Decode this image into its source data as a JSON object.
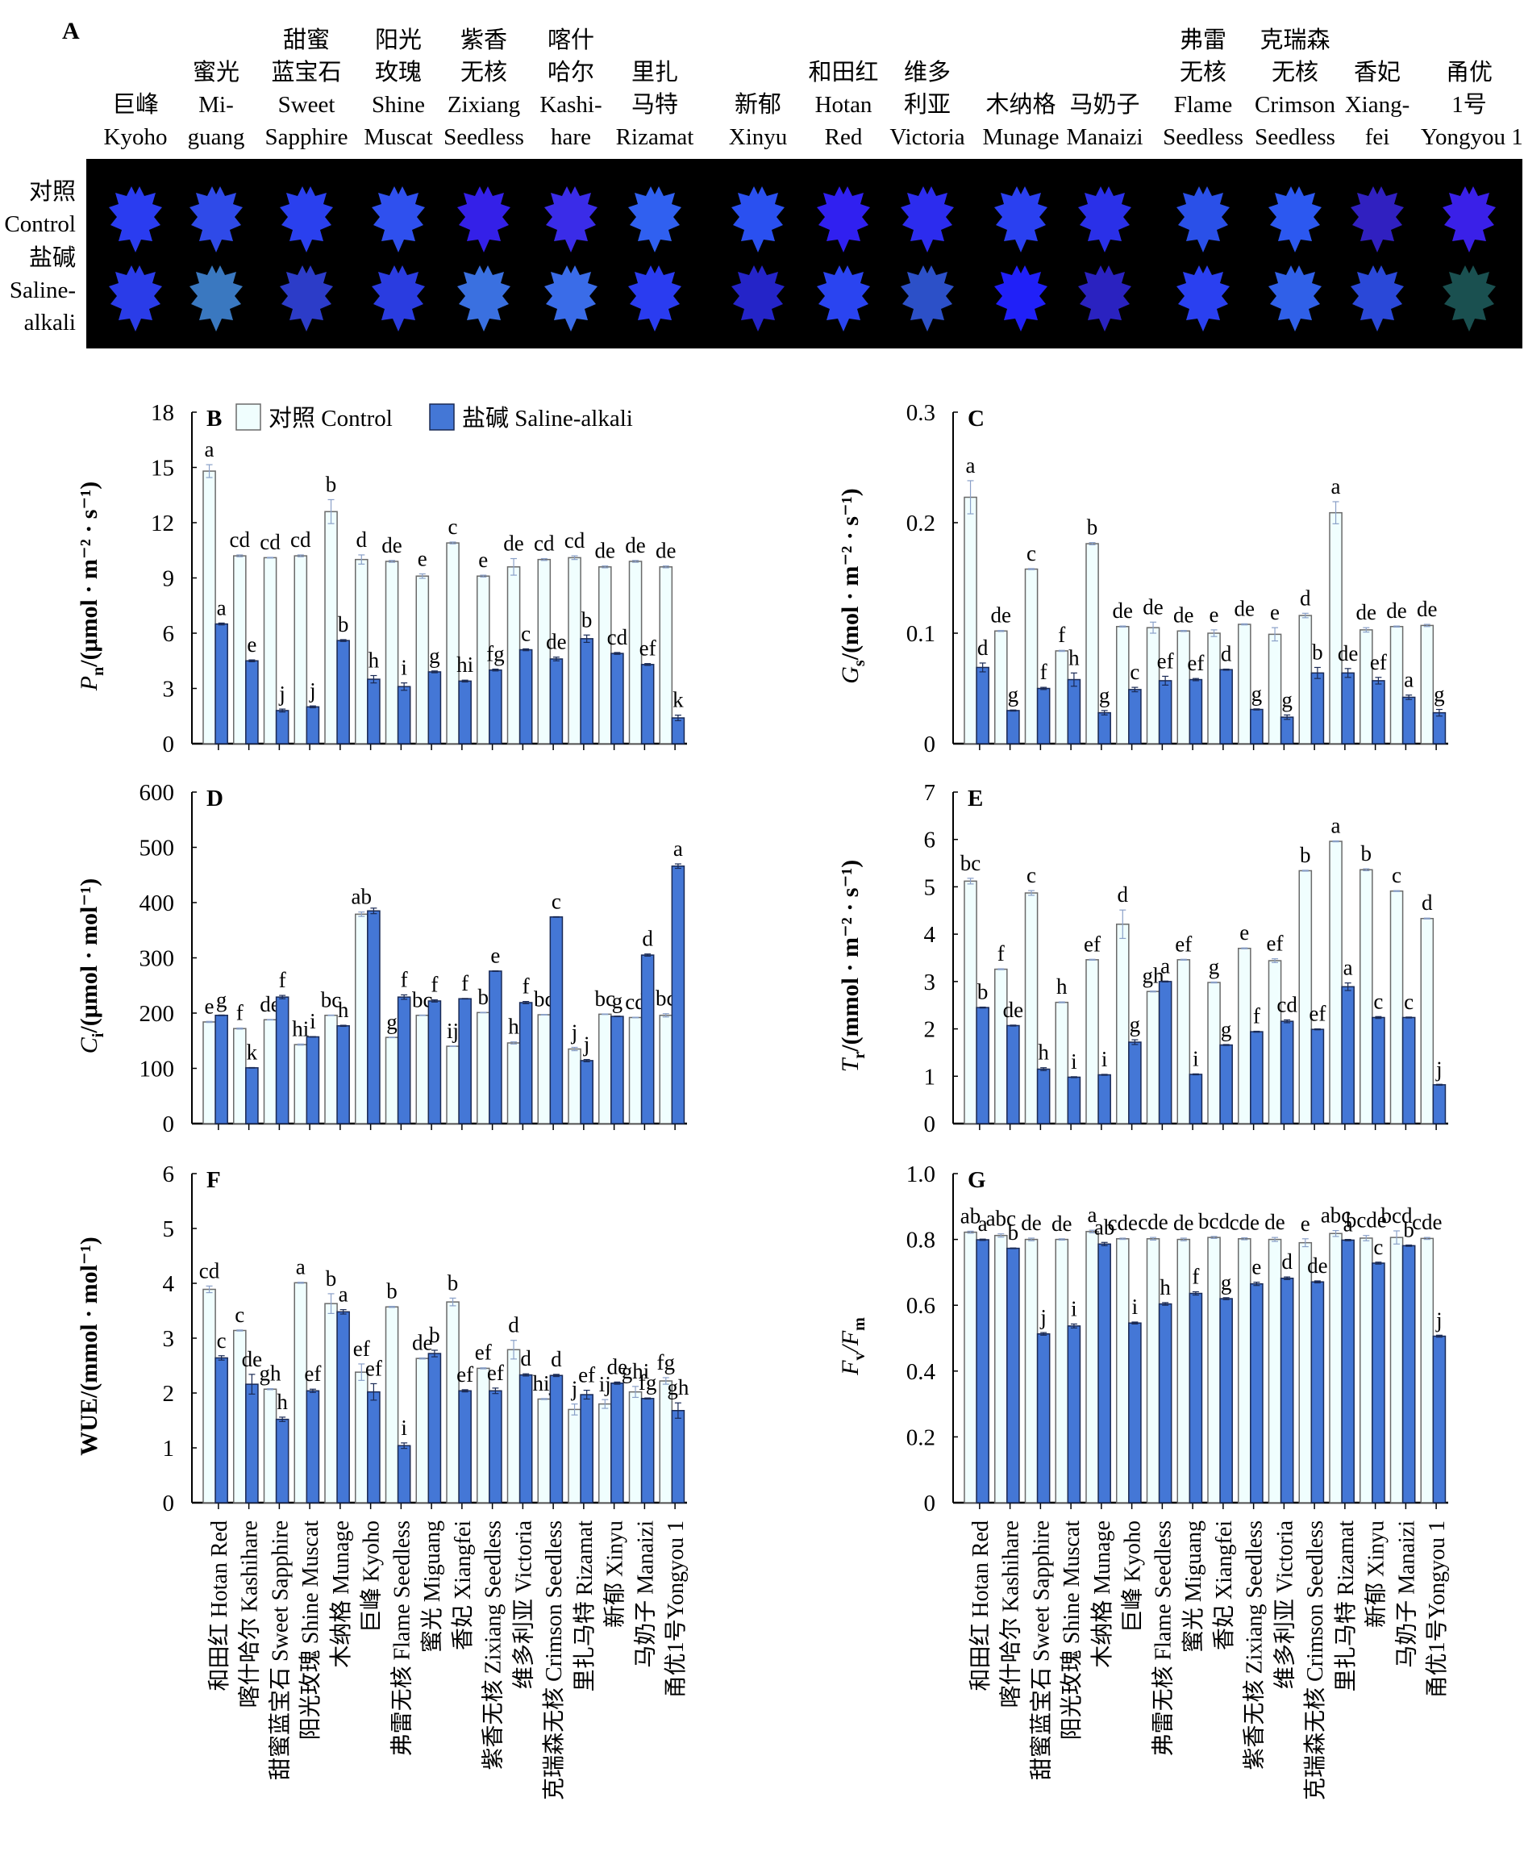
{
  "panel_a": {
    "letter": "A",
    "row_labels": [
      {
        "cn": "对照",
        "en": "Control"
      },
      {
        "cn": "盐碱",
        "en1": "Saline-",
        "en2": "alkali"
      }
    ],
    "varieties": [
      {
        "lines": [
          "",
          "",
          "巨峰",
          "Kyoho"
        ],
        "control_color": "#2a3cf0",
        "stress_color": "#2a3ce8"
      },
      {
        "lines": [
          "",
          "蜜光",
          "Mi-",
          "guang"
        ],
        "control_color": "#2f4ae8",
        "stress_color": "#3a78c0"
      },
      {
        "lines": [
          "甜蜜",
          "蓝宝石",
          "Sweet",
          "Sapphire"
        ],
        "control_color": "#2a40ee",
        "stress_color": "#2c3cc8"
      },
      {
        "lines": [
          "阳光",
          "玫瑰",
          "Shine",
          "Muscat"
        ],
        "control_color": "#2f50ee",
        "stress_color": "#2a3ce0"
      },
      {
        "lines": [
          "紫香",
          "无核",
          "Zixiang",
          "Seedless"
        ],
        "control_color": "#3420e8",
        "stress_color": "#3a70e0"
      },
      {
        "lines": [
          "喀什",
          "哈尔",
          "Kashi-",
          "hare"
        ],
        "control_color": "#3a2ce8",
        "stress_color": "#3a6ce8"
      },
      {
        "lines": [
          "",
          "里扎",
          "马特",
          "Rizamat"
        ],
        "control_color": "#3060f0",
        "stress_color": "#2a3cf0"
      },
      {
        "lines": [
          "",
          "",
          "新郁",
          "Xinyu"
        ],
        "control_color": "#2a50f0",
        "stress_color": "#2424c8"
      },
      {
        "lines": [
          "",
          "和田红",
          "Hotan",
          "Red"
        ],
        "control_color": "#3020f0",
        "stress_color": "#2a44f0"
      },
      {
        "lines": [
          "",
          "维多",
          "利亚",
          "Victoria"
        ],
        "control_color": "#2c2cee",
        "stress_color": "#2c50c8"
      },
      {
        "lines": [
          "",
          "",
          "木纳格",
          "Munage"
        ],
        "control_color": "#2a40f0",
        "stress_color": "#2020f8"
      },
      {
        "lines": [
          "",
          "",
          "马奶子",
          "Manaizi"
        ],
        "control_color": "#2a30e8",
        "stress_color": "#2a22c0"
      },
      {
        "lines": [
          "弗雷",
          "无核",
          "Flame",
          "Seedless"
        ],
        "control_color": "#2a50e8",
        "stress_color": "#2a40f0"
      },
      {
        "lines": [
          "克瑞森",
          "无核",
          "Crimson",
          "Seedless"
        ],
        "control_color": "#2c58f0",
        "stress_color": "#3060e8"
      },
      {
        "lines": [
          "",
          "香妃",
          "Xiang-",
          "fei"
        ],
        "control_color": "#3020c0",
        "stress_color": "#2a48d8"
      },
      {
        "lines": [
          "",
          "甬优",
          "1号",
          "Yongyou 1"
        ],
        "control_color": "#3a20e8",
        "stress_color": "#1a5050"
      }
    ]
  },
  "legend": {
    "control": "对照 Control",
    "stress": "盐碱 Saline-alkali",
    "control_color": "#f0fefe",
    "stress_color": "#4477d6"
  },
  "x_categories": [
    "和田红 Hotan Red",
    "喀什哈尔 Kashihare",
    "甜蜜蓝宝石 Sweet Sapphire",
    "阳光玫瑰 Shine Muscat",
    "木纳格 Munage",
    "巨峰 Kyoho",
    "弗雷无核 Flame Seedless",
    "蜜光 Miguang",
    "香妃 Xiangfei",
    "紫香无核 Zixiang Seedless",
    "维多利亚 Victoria",
    "克瑞森无核 Crimson Seedless",
    "里扎马特 Rizamat",
    "新郁 Xinyu",
    "马奶子 Manaizi",
    "甬优1号Yongyou 1"
  ],
  "chart_data": [
    {
      "id": "B",
      "type": "bar",
      "letter": "B",
      "ylabel_main": "P",
      "ylabel_sub": "n",
      "ylabel_rest": "/(μmol · m⁻² · s⁻¹)",
      "ylim": [
        0,
        18
      ],
      "yticks": [
        0,
        3,
        6,
        9,
        12,
        15,
        18
      ],
      "show_legend": true,
      "series": [
        {
          "name": "对照 Control",
          "values": [
            14.8,
            10.2,
            10.1,
            10.2,
            12.6,
            10.0,
            9.9,
            9.1,
            10.9,
            9.1,
            9.6,
            10.0,
            10.1,
            9.6,
            9.9,
            9.6
          ],
          "errors": [
            0.35,
            0.05,
            0.02,
            0.05,
            0.65,
            0.25,
            0.05,
            0.12,
            0.05,
            0.05,
            0.45,
            0.05,
            0.1,
            0.05,
            0.05,
            0.05
          ],
          "letters": [
            "a",
            "cd",
            "cd",
            "cd",
            "b",
            "d",
            "de",
            "e",
            "c",
            "e",
            "de",
            "cd",
            "cd",
            "de",
            "de",
            "de"
          ]
        },
        {
          "name": "盐碱 Saline-alkali",
          "values": [
            6.5,
            4.5,
            1.8,
            2.0,
            5.6,
            3.5,
            3.1,
            3.9,
            3.4,
            4.0,
            5.1,
            4.6,
            5.7,
            4.9,
            4.3,
            1.4
          ],
          "errors": [
            0.05,
            0.05,
            0.08,
            0.05,
            0.05,
            0.2,
            0.2,
            0.05,
            0.05,
            0.05,
            0.05,
            0.1,
            0.2,
            0.05,
            0.05,
            0.15
          ],
          "letters": [
            "a",
            "e",
            "j",
            "j",
            "b",
            "h",
            "i",
            "g",
            "hi",
            "fg",
            "c",
            "de",
            "b",
            "cd",
            "ef",
            "k"
          ]
        }
      ]
    },
    {
      "id": "C",
      "type": "bar",
      "letter": "C",
      "ylabel_main": "G",
      "ylabel_sub": "s",
      "ylabel_rest": "/(mol · m⁻² · s⁻¹)",
      "ylim": [
        0,
        0.3
      ],
      "yticks": [
        0,
        0.1,
        0.2,
        0.3
      ],
      "show_legend": false,
      "series": [
        {
          "name": "对照 Control",
          "values": [
            0.223,
            0.102,
            0.158,
            0.084,
            0.181,
            0.106,
            0.105,
            0.102,
            0.1,
            0.108,
            0.099,
            0.116,
            0.209,
            0.103,
            0.106,
            0.107
          ],
          "errors": [
            0.015,
            0.0005,
            0.0005,
            0.0005,
            0.001,
            0.0005,
            0.005,
            0.0005,
            0.003,
            0.0005,
            0.006,
            0.002,
            0.01,
            0.002,
            0.0005,
            0.001
          ],
          "letters": [
            "a",
            "de",
            "c",
            "f",
            "b",
            "de",
            "de",
            "de",
            "e",
            "de",
            "e",
            "d",
            "a",
            "de",
            "de",
            "de"
          ]
        },
        {
          "name": "盐碱 Saline-alkali",
          "values": [
            0.069,
            0.03,
            0.05,
            0.058,
            0.028,
            0.049,
            0.057,
            0.058,
            0.067,
            0.031,
            0.024,
            0.064,
            0.064,
            0.057,
            0.042,
            0.028
          ],
          "errors": [
            0.004,
            0.0005,
            0.001,
            0.006,
            0.002,
            0.002,
            0.004,
            0.001,
            0.0005,
            0.0005,
            0.002,
            0.005,
            0.004,
            0.003,
            0.002,
            0.003
          ],
          "letters": [
            "d",
            "g",
            "f",
            "h",
            "g",
            "c",
            "ef",
            "ef",
            "d",
            "g",
            "g",
            "b",
            "de",
            "ef",
            "a",
            "g"
          ]
        }
      ]
    },
    {
      "id": "D",
      "type": "bar",
      "letter": "D",
      "ylabel_main": "C",
      "ylabel_sub": "i",
      "ylabel_rest": "/(μmol · mol⁻¹)",
      "ylim": [
        0,
        600
      ],
      "yticks": [
        0,
        100,
        200,
        300,
        400,
        500,
        600
      ],
      "show_legend": false,
      "series": [
        {
          "name": "对照 Control",
          "values": [
            184,
            172,
            188,
            143,
            196,
            379,
            156,
            196,
            140,
            201,
            146,
            197,
            135,
            198,
            192,
            196
          ],
          "errors": [
            1,
            1,
            0.5,
            1,
            0.5,
            4,
            0.5,
            0.5,
            0.5,
            0.5,
            2,
            0.5,
            3,
            0.5,
            0.5,
            3
          ],
          "letters": [
            "e",
            "f",
            "de",
            "hi",
            "bc",
            "ab",
            "g",
            "bc",
            "ij",
            "b",
            "h",
            "bc",
            "j",
            "bc",
            "cd",
            "bc"
          ]
        },
        {
          "name": "盐碱 Saline-alkali",
          "values": [
            196,
            101,
            229,
            157,
            177,
            385,
            229,
            222,
            226,
            276,
            219,
            374,
            114,
            194,
            305,
            466
          ],
          "errors": [
            0.5,
            0.5,
            3,
            0.5,
            1,
            5,
            4,
            2,
            0.5,
            0.5,
            2,
            0.5,
            2,
            0.5,
            2,
            4
          ],
          "letters": [
            "g",
            "k",
            "f",
            "i",
            "h",
            "",
            "f",
            "f",
            "f",
            "e",
            "f",
            "c",
            "j",
            "g",
            "d",
            "a"
          ]
        }
      ]
    },
    {
      "id": "E",
      "type": "bar",
      "letter": "E",
      "ylabel_main": "T",
      "ylabel_sub": "r",
      "ylabel_rest": "/(mmol · m⁻² · s⁻¹)",
      "ylim": [
        0,
        7
      ],
      "yticks": [
        0,
        1,
        2,
        3,
        4,
        5,
        6,
        7
      ],
      "show_legend": false,
      "series": [
        {
          "name": "对照 Control",
          "values": [
            5.12,
            3.26,
            4.87,
            2.56,
            3.46,
            4.21,
            2.79,
            3.46,
            2.98,
            3.7,
            3.44,
            5.34,
            5.96,
            5.36,
            4.91,
            4.33
          ],
          "errors": [
            0.06,
            0.01,
            0.05,
            0.01,
            0.01,
            0.3,
            0.01,
            0.01,
            0.01,
            0.01,
            0.04,
            0.01,
            0.01,
            0.02,
            0.01,
            0.01
          ],
          "letters": [
            "bc",
            "f",
            "c",
            "h",
            "ef",
            "d",
            "gh",
            "ef",
            "g",
            "e",
            "ef",
            "b",
            "a",
            "b",
            "c",
            "d"
          ]
        },
        {
          "name": "盐碱 Saline-alkali",
          "values": [
            2.45,
            2.07,
            1.15,
            0.98,
            1.03,
            1.72,
            3.0,
            1.04,
            1.66,
            1.94,
            2.16,
            1.99,
            2.89,
            2.24,
            2.24,
            0.82
          ],
          "errors": [
            0.01,
            0.01,
            0.03,
            0.01,
            0.01,
            0.05,
            0.01,
            0.01,
            0.01,
            0.01,
            0.03,
            0.01,
            0.08,
            0.02,
            0.01,
            0.01
          ],
          "letters": [
            "b",
            "de",
            "h",
            "i",
            "i",
            "g",
            "a",
            "i",
            "g",
            "f",
            "cd",
            "ef",
            "a",
            "c",
            "c",
            "j"
          ]
        }
      ]
    },
    {
      "id": "F",
      "type": "bar",
      "letter": "F",
      "ylabel_main": "WUE",
      "ylabel_sub": "",
      "ylabel_rest": "/(mmol · mol⁻¹)",
      "ylim": [
        0,
        6
      ],
      "yticks": [
        0,
        1,
        2,
        3,
        4,
        5,
        6
      ],
      "show_legend": false,
      "series": [
        {
          "name": "对照 Control",
          "values": [
            3.89,
            3.14,
            2.07,
            4.01,
            3.63,
            2.38,
            3.57,
            2.63,
            3.66,
            2.45,
            2.79,
            1.89,
            1.7,
            1.8,
            2.02,
            2.22
          ],
          "errors": [
            0.06,
            0.01,
            0.01,
            0.01,
            0.18,
            0.15,
            0.01,
            0.01,
            0.07,
            0.01,
            0.17,
            0.01,
            0.1,
            0.08,
            0.1,
            0.06
          ],
          "letters": [
            "cd",
            "c",
            "gh",
            "a",
            "b",
            "ef",
            "b",
            "de",
            "b",
            "ef",
            "d",
            "hij",
            "j",
            "ij",
            "ghi",
            "fg"
          ]
        },
        {
          "name": "盐碱 Saline-alkali",
          "values": [
            2.64,
            2.16,
            1.52,
            2.04,
            3.48,
            2.02,
            1.04,
            2.72,
            2.04,
            2.04,
            2.33,
            2.32,
            1.97,
            2.18,
            1.9,
            1.68
          ],
          "errors": [
            0.04,
            0.18,
            0.04,
            0.03,
            0.04,
            0.15,
            0.05,
            0.06,
            0.02,
            0.05,
            0.02,
            0.02,
            0.08,
            0.02,
            0.01,
            0.14
          ],
          "letters": [
            "c",
            "de",
            "h",
            "ef",
            "a",
            "ef",
            "i",
            "b",
            "ef",
            "ef",
            "d",
            "d",
            "ef",
            "de",
            "fg",
            "gh"
          ]
        }
      ]
    },
    {
      "id": "G",
      "type": "bar",
      "letter": "G",
      "ylabel_main": "F",
      "ylabel_sub": "v",
      "ylabel_rest": "/F",
      "ylabel_tail_sub": "m",
      "ylim": [
        0,
        1.0
      ],
      "yticks": [
        0,
        0.2,
        0.4,
        0.6,
        0.8,
        1.0
      ],
      "show_legend": false,
      "series": [
        {
          "name": "对照 Control",
          "values": [
            0.822,
            0.812,
            0.8,
            0.8,
            0.824,
            0.802,
            0.802,
            0.8,
            0.806,
            0.802,
            0.8,
            0.79,
            0.818,
            0.804,
            0.806,
            0.803
          ],
          "errors": [
            0.003,
            0.005,
            0.004,
            0.002,
            0.004,
            0.002,
            0.004,
            0.004,
            0.003,
            0.003,
            0.006,
            0.012,
            0.009,
            0.008,
            0.02,
            0.003
          ],
          "letters": [
            "ab",
            "abc",
            "de",
            "de",
            "a",
            "cde",
            "cde",
            "de",
            "bcd",
            "cde",
            "de",
            "e",
            "abc",
            "bcde",
            "bcd",
            "cde"
          ]
        },
        {
          "name": "盐碱 Saline-alkali",
          "values": [
            0.799,
            0.773,
            0.513,
            0.537,
            0.786,
            0.546,
            0.604,
            0.636,
            0.62,
            0.665,
            0.682,
            0.671,
            0.798,
            0.728,
            0.781,
            0.506
          ],
          "errors": [
            0.002,
            0.001,
            0.004,
            0.006,
            0.005,
            0.003,
            0.004,
            0.005,
            0.003,
            0.005,
            0.004,
            0.003,
            0.002,
            0.003,
            0.002,
            0.003
          ],
          "letters": [
            "a",
            "b",
            "j",
            "i",
            "ab",
            "i",
            "h",
            "f",
            "g",
            "e",
            "d",
            "de",
            "a",
            "c",
            "b",
            "j"
          ]
        }
      ]
    }
  ]
}
